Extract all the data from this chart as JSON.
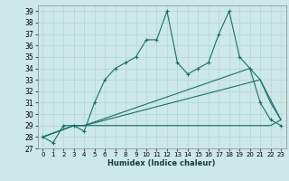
{
  "xlabel": "Humidex (Indice chaleur)",
  "xlim": [
    -0.5,
    23.5
  ],
  "ylim": [
    27,
    39.5
  ],
  "yticks": [
    27,
    28,
    29,
    30,
    31,
    32,
    33,
    34,
    35,
    36,
    37,
    38,
    39
  ],
  "xticks": [
    0,
    1,
    2,
    3,
    4,
    5,
    6,
    7,
    8,
    9,
    10,
    11,
    12,
    13,
    14,
    15,
    16,
    17,
    18,
    19,
    20,
    21,
    22,
    23
  ],
  "bg_color": "#cce8e8",
  "grid_color": "#aacccc",
  "line_color": "#1a6e6a",
  "line1_x": [
    0,
    1,
    2,
    3,
    4,
    5,
    6,
    7,
    8,
    9,
    10,
    11,
    12,
    13,
    14,
    15,
    16,
    17,
    18,
    19,
    20,
    21,
    22,
    23
  ],
  "line1_y": [
    28,
    27.5,
    29,
    29,
    28.5,
    31,
    33,
    34,
    34.5,
    35,
    36.5,
    36.5,
    39,
    34.5,
    33.5,
    34,
    34.5,
    37,
    39,
    35,
    34,
    31,
    29.5,
    29
  ],
  "line2_x": [
    0,
    3,
    4,
    14,
    21,
    22,
    23
  ],
  "line2_y": [
    28.0,
    29.0,
    29.0,
    29.0,
    29.0,
    29.0,
    29.5
  ],
  "line3_x": [
    0,
    3,
    4,
    21,
    23
  ],
  "line3_y": [
    28.0,
    29.0,
    29.0,
    33.0,
    29.5
  ],
  "line4_x": [
    0,
    3,
    4,
    20,
    21,
    22,
    23
  ],
  "line4_y": [
    28.0,
    29.0,
    29.0,
    34.0,
    33.0,
    31.0,
    29.5
  ]
}
